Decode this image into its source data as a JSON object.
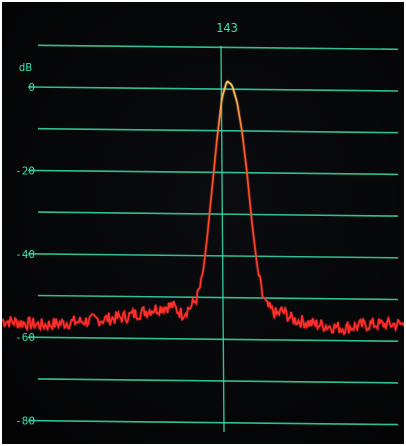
{
  "chart_data": {
    "type": "line",
    "title": "",
    "xlabel": "",
    "ylabel": "dB",
    "marker_label": "143",
    "ylim": [
      -85,
      5
    ],
    "grid": true,
    "y_ticks": [
      {
        "value": 0,
        "label": "0"
      },
      {
        "value": -20,
        "label": "-20"
      },
      {
        "value": -40,
        "label": "-40"
      },
      {
        "value": -60,
        "label": "-60"
      },
      {
        "value": -80,
        "label": "-80"
      }
    ],
    "grid_levels": [
      10,
      0,
      -10,
      -20,
      -30,
      -40,
      -50,
      -60,
      -70,
      -80
    ],
    "series": [
      {
        "peak_db": 2,
        "noise_floor_db": -56,
        "x": [
          0,
          40,
          80,
          120,
          150,
          170,
          180,
          190,
          195,
          200,
          205,
          210,
          215,
          220,
          225,
          230,
          235,
          240,
          245,
          250,
          255,
          260,
          265,
          270,
          275,
          280,
          290,
          310,
          340,
          370,
          402
        ],
        "y": [
          -56,
          -57,
          -56,
          -55,
          -53,
          -52,
          -54,
          -52,
          -50,
          -46,
          -36,
          -24,
          -12,
          -2,
          2,
          1,
          -3,
          -10,
          -20,
          -32,
          -42,
          -49,
          -52,
          -53,
          -54,
          -53,
          -55,
          -56,
          -57,
          -56,
          -56
        ]
      }
    ],
    "colors": {
      "grid": "#36e0b0",
      "trace": "#ff2a2a",
      "peak": "#ffd25a",
      "background": "#07080a"
    }
  }
}
